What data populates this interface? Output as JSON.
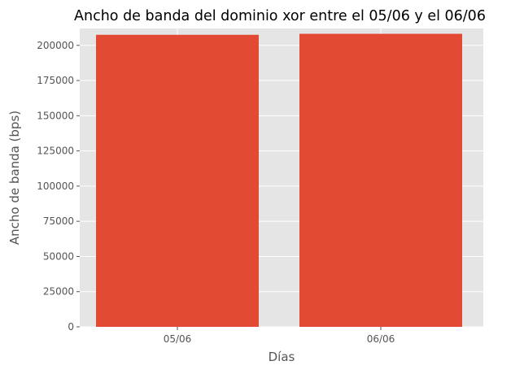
{
  "chart_data": {
    "type": "bar",
    "title": "Ancho de banda del dominio xor entre el 05/06 y el 06/06",
    "xlabel": "Días",
    "ylabel": "Ancho de banda (bps)",
    "categories": [
      "05/06",
      "06/06"
    ],
    "values": [
      207500,
      208200
    ],
    "ylim": [
      0,
      212000
    ],
    "yticks": [
      0,
      25000,
      50000,
      75000,
      100000,
      125000,
      150000,
      175000,
      200000
    ],
    "grid": true,
    "legend": "none",
    "colors": {
      "bar": "#E24A33",
      "plot_background": "#E5E5E5",
      "grid": "#FFFFFF",
      "text": "#555555",
      "title": "#000000"
    }
  }
}
